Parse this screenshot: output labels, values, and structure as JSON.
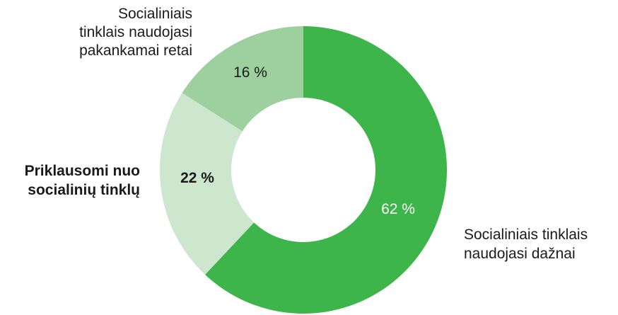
{
  "chart_data": {
    "type": "pie",
    "donut": true,
    "slices": [
      {
        "value": 62,
        "value_label": "62 %",
        "category_lines": [
          "Socialiniais tinklais",
          "naudojasi dažnai"
        ],
        "color": "#3db54a",
        "value_text_color": "#ffffff",
        "emphasis": false
      },
      {
        "value": 22,
        "value_label": "22 %",
        "category_lines": [
          "Priklausomi nuo",
          "socialinių tinklų"
        ],
        "color": "#cde6ce",
        "value_text_color": "#1a1a1a",
        "emphasis": true
      },
      {
        "value": 16,
        "value_label": "16 %",
        "category_lines": [
          "Socialiniais",
          "tinklais naudojasi",
          "pakankamai retai"
        ],
        "color": "#9dd09e",
        "value_text_color": "#1a1a1a",
        "emphasis": false
      }
    ]
  }
}
